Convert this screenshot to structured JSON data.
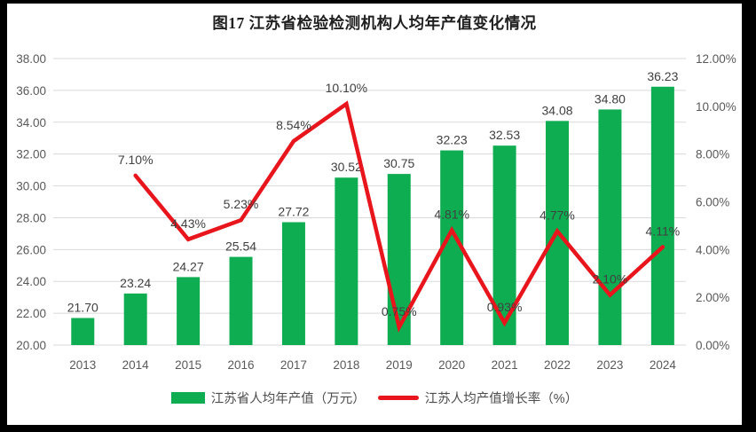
{
  "title": "图17  江苏省检验检测机构人均年产值变化情况",
  "legend": {
    "bars": "江苏省人均年产值（万元）",
    "line": "江苏人均产值增长率（%）"
  },
  "colors": {
    "bar": "#0fad51",
    "line": "#e8151c",
    "grid": "#dadada",
    "tick": "#595959",
    "data_label": "#404040",
    "title": "#1f1f1f",
    "background": "#ffffff",
    "frame": "#000000"
  },
  "chart_data": {
    "type": "bar",
    "subtype": "bar-line-combo",
    "title": "图17  江苏省检验检测机构人均年产值变化情况",
    "categories": [
      "2013",
      "2014",
      "2015",
      "2016",
      "2017",
      "2018",
      "2019",
      "2020",
      "2021",
      "2022",
      "2023",
      "2024"
    ],
    "series": [
      {
        "name": "江苏省人均年产值（万元）",
        "type": "bar",
        "axis": "left",
        "values": [
          21.7,
          23.24,
          24.27,
          25.54,
          27.72,
          30.52,
          30.75,
          32.23,
          32.53,
          34.08,
          34.8,
          36.23
        ],
        "labels": [
          "21.70",
          "23.24",
          "24.27",
          "25.54",
          "27.72",
          "30.52",
          "30.75",
          "32.23",
          "32.53",
          "34.08",
          "34.80",
          "36.23"
        ]
      },
      {
        "name": "江苏人均产值增长率（%）",
        "type": "line",
        "axis": "right",
        "values": [
          null,
          7.1,
          4.43,
          5.23,
          8.54,
          10.1,
          0.75,
          4.81,
          0.93,
          4.77,
          2.1,
          4.11
        ],
        "labels": [
          null,
          "7.10%",
          "4.43%",
          "5.23%",
          "8.54%",
          "10.10%",
          "0.75%",
          "4.81%",
          "0.93%",
          "4.77%",
          "2.10%",
          "4.11%"
        ]
      }
    ],
    "left_axis": {
      "min": 20,
      "max": 38,
      "step": 2,
      "tick_labels": [
        "38.00",
        "36.00",
        "34.00",
        "32.00",
        "30.00",
        "28.00",
        "26.00",
        "24.00",
        "22.00",
        "20.00"
      ]
    },
    "right_axis": {
      "min": 0,
      "max": 12,
      "step": 2,
      "tick_labels": [
        "12.00%",
        "10.00%",
        "8.00%",
        "6.00%",
        "4.00%",
        "2.00%",
        "0.00%"
      ]
    },
    "grid": true,
    "legend_position": "bottom"
  }
}
